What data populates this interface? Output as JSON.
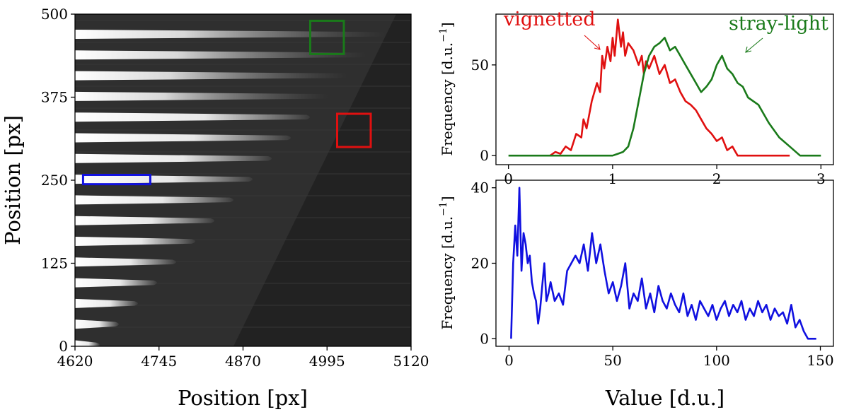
{
  "chart_data": [
    {
      "type": "heatmap",
      "description_kind": "grayscale detector image crop",
      "xlabel": "Position [px]",
      "ylabel": "Position [px]",
      "xlim": [
        4620,
        5120
      ],
      "ylim": [
        0,
        500
      ],
      "x_ticks": [
        "4620",
        "4745",
        "4870",
        "4995",
        "5120"
      ],
      "y_ticks": [
        "0",
        "125",
        "250",
        "375",
        "500"
      ],
      "grid": false,
      "regions": [
        {
          "name": "green-box",
          "color": "#1a7a1a",
          "x": [
            4970,
            5020
          ],
          "y": [
            440,
            490
          ]
        },
        {
          "name": "red-box",
          "color": "#e01010",
          "x": [
            5010,
            5060
          ],
          "y": [
            300,
            350
          ]
        },
        {
          "name": "blue-box",
          "color": "#1010e0",
          "x": [
            4632,
            4732
          ],
          "y": [
            244,
            258
          ]
        }
      ]
    },
    {
      "type": "line",
      "ylabel": "Frequency [d.u.^-1]",
      "xlim": [
        -0.12,
        3.12
      ],
      "ylim": [
        -5,
        78
      ],
      "x_ticks": [
        "0",
        "1",
        "2",
        "3"
      ],
      "y_ticks": [
        "0",
        "50"
      ],
      "annotations": [
        "vignetted",
        "stray-light"
      ],
      "series": [
        {
          "name": "vignetted",
          "color": "#e01010",
          "x": [
            0.4,
            0.45,
            0.5,
            0.55,
            0.6,
            0.65,
            0.7,
            0.72,
            0.75,
            0.8,
            0.85,
            0.88,
            0.9,
            0.92,
            0.95,
            0.98,
            1.0,
            1.02,
            1.05,
            1.08,
            1.1,
            1.12,
            1.15,
            1.2,
            1.25,
            1.28,
            1.3,
            1.32,
            1.35,
            1.4,
            1.45,
            1.5,
            1.55,
            1.6,
            1.65,
            1.7,
            1.75,
            1.8,
            1.85,
            1.9,
            1.95,
            2.0,
            2.05,
            2.1,
            2.15,
            2.2,
            2.3,
            2.5,
            2.7
          ],
          "y": [
            0,
            2,
            1,
            5,
            3,
            12,
            10,
            20,
            15,
            30,
            40,
            35,
            55,
            48,
            60,
            52,
            65,
            55,
            75,
            60,
            68,
            55,
            62,
            58,
            50,
            55,
            45,
            52,
            48,
            55,
            45,
            50,
            40,
            42,
            35,
            30,
            28,
            25,
            20,
            15,
            12,
            8,
            10,
            3,
            5,
            0,
            0,
            0,
            0
          ]
        },
        {
          "name": "stray-light",
          "color": "#1a7a1a",
          "x": [
            0.0,
            0.5,
            1.0,
            1.05,
            1.1,
            1.15,
            1.2,
            1.25,
            1.3,
            1.35,
            1.4,
            1.45,
            1.5,
            1.55,
            1.6,
            1.65,
            1.7,
            1.75,
            1.8,
            1.85,
            1.9,
            1.95,
            2.0,
            2.05,
            2.1,
            2.15,
            2.2,
            2.25,
            2.3,
            2.4,
            2.5,
            2.6,
            2.7,
            2.8,
            3.0
          ],
          "y": [
            0,
            0,
            0,
            1,
            2,
            5,
            15,
            30,
            45,
            55,
            60,
            62,
            65,
            58,
            60,
            55,
            50,
            45,
            40,
            35,
            38,
            42,
            50,
            55,
            48,
            45,
            40,
            38,
            32,
            28,
            18,
            10,
            5,
            0,
            0
          ]
        }
      ]
    },
    {
      "type": "line",
      "xlabel": "Value [d.u.]",
      "ylabel": "Frequency [d.u.^-1]",
      "xlim": [
        -6.3,
        156.3
      ],
      "ylim": [
        -2,
        42
      ],
      "x_ticks": [
        "0",
        "50",
        "100",
        "150"
      ],
      "y_ticks": [
        "0",
        "20",
        "40"
      ],
      "series": [
        {
          "name": "blue-region",
          "color": "#1010e0",
          "x": [
            1,
            2,
            3,
            4,
            5,
            6,
            7,
            8,
            9,
            10,
            11,
            12,
            13,
            14,
            15,
            16,
            17,
            18,
            19,
            20,
            22,
            24,
            26,
            28,
            30,
            32,
            34,
            36,
            38,
            40,
            42,
            44,
            46,
            48,
            50,
            52,
            54,
            56,
            58,
            60,
            62,
            64,
            66,
            68,
            70,
            72,
            74,
            76,
            78,
            80,
            82,
            84,
            86,
            88,
            90,
            92,
            94,
            96,
            98,
            100,
            102,
            104,
            106,
            108,
            110,
            112,
            114,
            116,
            118,
            120,
            122,
            124,
            126,
            128,
            130,
            132,
            134,
            136,
            138,
            140,
            142,
            144,
            146,
            148
          ],
          "y": [
            0,
            20,
            30,
            22,
            40,
            18,
            28,
            25,
            20,
            22,
            15,
            12,
            10,
            4,
            8,
            14,
            20,
            10,
            12,
            15,
            10,
            12,
            9,
            18,
            20,
            22,
            20,
            25,
            18,
            28,
            20,
            25,
            18,
            12,
            15,
            10,
            14,
            20,
            8,
            12,
            10,
            16,
            8,
            12,
            7,
            14,
            10,
            8,
            12,
            9,
            7,
            12,
            6,
            9,
            5,
            10,
            8,
            6,
            9,
            5,
            8,
            10,
            6,
            9,
            7,
            10,
            5,
            8,
            6,
            10,
            7,
            9,
            5,
            8,
            6,
            7,
            4,
            9,
            3,
            5,
            2,
            0,
            0,
            0
          ]
        }
      ]
    }
  ]
}
